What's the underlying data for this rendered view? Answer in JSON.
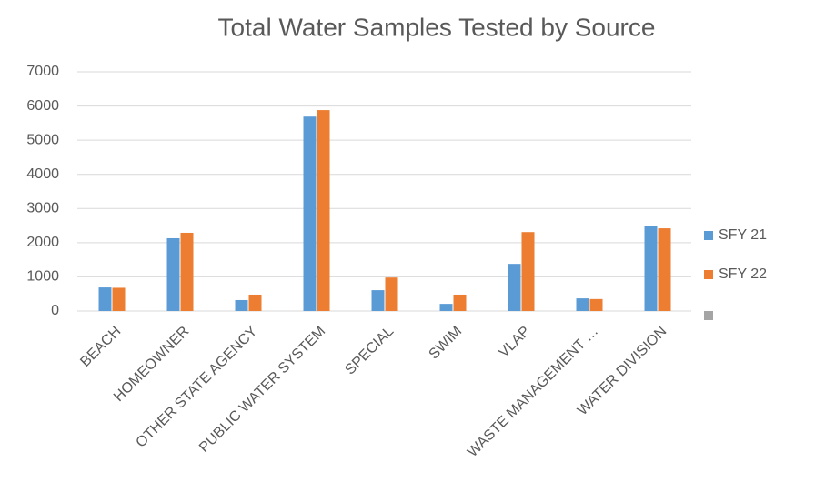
{
  "chart_data": {
    "type": "bar",
    "title": "Total Water Samples Tested by Source",
    "categories": [
      "BEACH",
      "HOMEOWNER",
      "OTHER STATE AGENCY",
      "PUBLIC WATER SYSTEM",
      "SPECIAL",
      "SWIM",
      "VLAP",
      "WASTE MANAGEMENT …",
      "WATER DIVISION"
    ],
    "series": [
      {
        "name": "SFY 21",
        "color": "#5b9bd5",
        "values": [
          690,
          2130,
          320,
          5690,
          610,
          210,
          1380,
          370,
          2500
        ]
      },
      {
        "name": "SFY 22",
        "color": "#ed7d31",
        "values": [
          680,
          2290,
          480,
          5880,
          980,
          480,
          2310,
          350,
          2420
        ]
      }
    ],
    "ylim": [
      0,
      7000
    ],
    "yticks": [
      0,
      1000,
      2000,
      3000,
      4000,
      5000,
      6000,
      7000
    ],
    "grid": true,
    "legend": "right"
  }
}
